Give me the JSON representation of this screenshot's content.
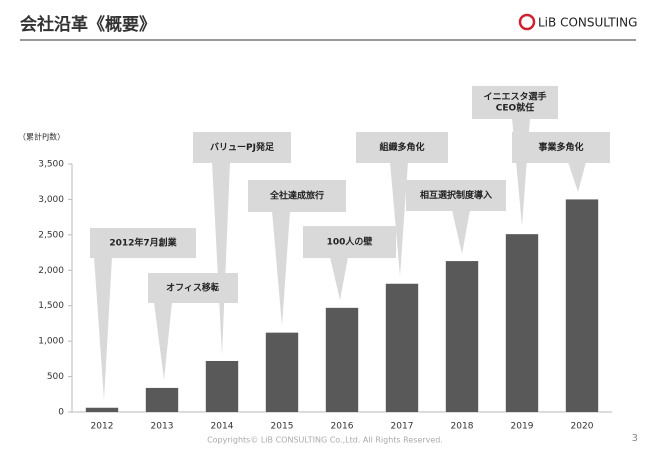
{
  "header": {
    "title": "会社沿革《概要》",
    "logo": "LiB CONSULTING"
  },
  "chart_data": {
    "type": "bar",
    "y_label": "（累計PJ数）",
    "categories": [
      "2012",
      "2013",
      "2014",
      "2015",
      "2016",
      "2017",
      "2018",
      "2019",
      "2020"
    ],
    "values": [
      60,
      340,
      720,
      1120,
      1470,
      1810,
      2130,
      2510,
      3000
    ],
    "color": "#595959",
    "ylim": [
      0,
      3500
    ],
    "yticks": [
      0,
      500,
      {
        "value": 1000,
        "label": "1,000"
      },
      {
        "value": 1500,
        "label": "1,500"
      },
      {
        "value": 2000,
        "label": "2,000"
      },
      {
        "value": 2500,
        "label": "2,500"
      },
      {
        "value": 3000,
        "label": "3,000"
      },
      {
        "value": 3500,
        "label": "3,500"
      }
    ],
    "grid": false,
    "annotations": [
      [
        "2012年7月創業"
      ],
      [
        "オフィス移転"
      ],
      [
        "バリューPJ発足"
      ],
      [
        "全社達成旅行"
      ],
      [
        "100人の壁"
      ],
      [
        "組織多角化"
      ],
      [
        "相互選択制度導入"
      ],
      [
        "イニエスタ選手",
        "CEO就任"
      ],
      [
        "事業多角化"
      ]
    ]
  },
  "footer": {
    "copyright": "Copyrights© LiB CONSULTING Co.,Ltd.   All Rights Reserved.",
    "page": "3"
  }
}
